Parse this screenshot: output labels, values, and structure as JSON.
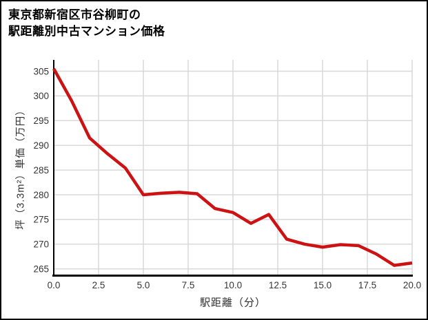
{
  "title": {
    "line1": "東京都新宿区市谷柳町の",
    "line2": "駅距離別中古マンション価格"
  },
  "chart_data": {
    "type": "line",
    "title": "東京都新宿区市谷柳町の駅距離別中古マンション価格",
    "xlabel": "駅距離（分）",
    "ylabel": "坪（3.3m²）単価（万円）",
    "x": [
      0,
      1,
      2,
      3,
      4,
      5,
      6,
      7,
      8,
      9,
      10,
      11,
      12,
      13,
      14,
      15,
      16,
      17,
      18,
      19,
      20
    ],
    "values": [
      305.5,
      299.0,
      291.5,
      288.3,
      285.4,
      280.0,
      280.3,
      280.5,
      280.2,
      277.2,
      276.4,
      274.2,
      276.0,
      271.0,
      270.0,
      269.4,
      269.9,
      269.7,
      268.0,
      265.7,
      266.2
    ],
    "x_tick_labels": [
      "0.0",
      "2.5",
      "5.0",
      "7.5",
      "10.0",
      "12.5",
      "15.0",
      "17.5",
      "20.0"
    ],
    "x_ticks": [
      0,
      2.5,
      5,
      7.5,
      10,
      12.5,
      15,
      17.5,
      20
    ],
    "y_ticks": [
      265,
      270,
      275,
      280,
      285,
      290,
      295,
      300,
      305
    ],
    "xlim": [
      0,
      20
    ],
    "ylim": [
      263.7,
      307.3
    ],
    "grid": true,
    "legend": "none",
    "colors": {
      "series": "#cc1212",
      "grid": "#d8d8d8",
      "axis": "#000000",
      "tick_label": "#343434",
      "background": "#ffffff"
    }
  }
}
